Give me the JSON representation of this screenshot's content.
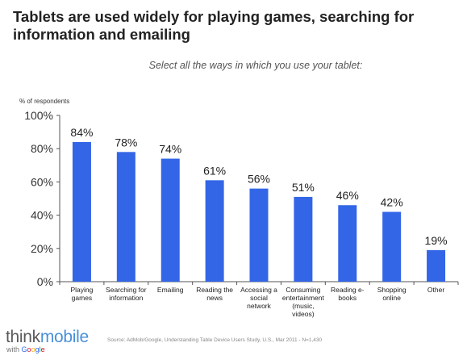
{
  "title": "Tablets are used widely for playing games, searching for information and emailing",
  "subtitle": "Select all the ways in which you use your tablet:",
  "source": "Source: AdMob/Google, Understanding Table Device Users Study, U.S., Mar 2011 - N=1,430",
  "logo": {
    "think": "think",
    "mobile": "mobile",
    "with": "with",
    "google_letters": [
      "G",
      "o",
      "o",
      "g",
      "l",
      "e"
    ]
  },
  "colors": {
    "bar": "#3366e6",
    "axis": "#555555",
    "google": [
      "#3369e8",
      "#d50f25",
      "#eeb211",
      "#3369e8",
      "#009925",
      "#d50f25"
    ]
  },
  "chart_data": {
    "type": "bar",
    "title": "Tablets are used widely for playing games, searching for information and emailing",
    "subtitle": "Select all the ways in which you use your tablet:",
    "ylabel": "% of respondents",
    "xlabel": "",
    "ylim": [
      0,
      100
    ],
    "yticks": [
      "0%",
      "20%",
      "40%",
      "60%",
      "80%",
      "100%"
    ],
    "ytick_values": [
      0,
      20,
      40,
      60,
      80,
      100
    ],
    "grid": false,
    "legend": "none",
    "categories": [
      [
        "Playing",
        "games"
      ],
      [
        "Searching for",
        "information"
      ],
      [
        "Emailing"
      ],
      [
        "Reading the",
        "news"
      ],
      [
        "Accessing a",
        "social",
        "network"
      ],
      [
        "Consuming",
        "entertainment",
        "(music,",
        "videos)"
      ],
      [
        "Reading e-",
        "books"
      ],
      [
        "Shopping",
        "online"
      ],
      [
        "Other"
      ]
    ],
    "values": [
      84,
      78,
      74,
      61,
      56,
      51,
      46,
      42,
      19
    ],
    "data_labels": [
      "84%",
      "78%",
      "74%",
      "61%",
      "56%",
      "51%",
      "46%",
      "42%",
      "19%"
    ]
  }
}
